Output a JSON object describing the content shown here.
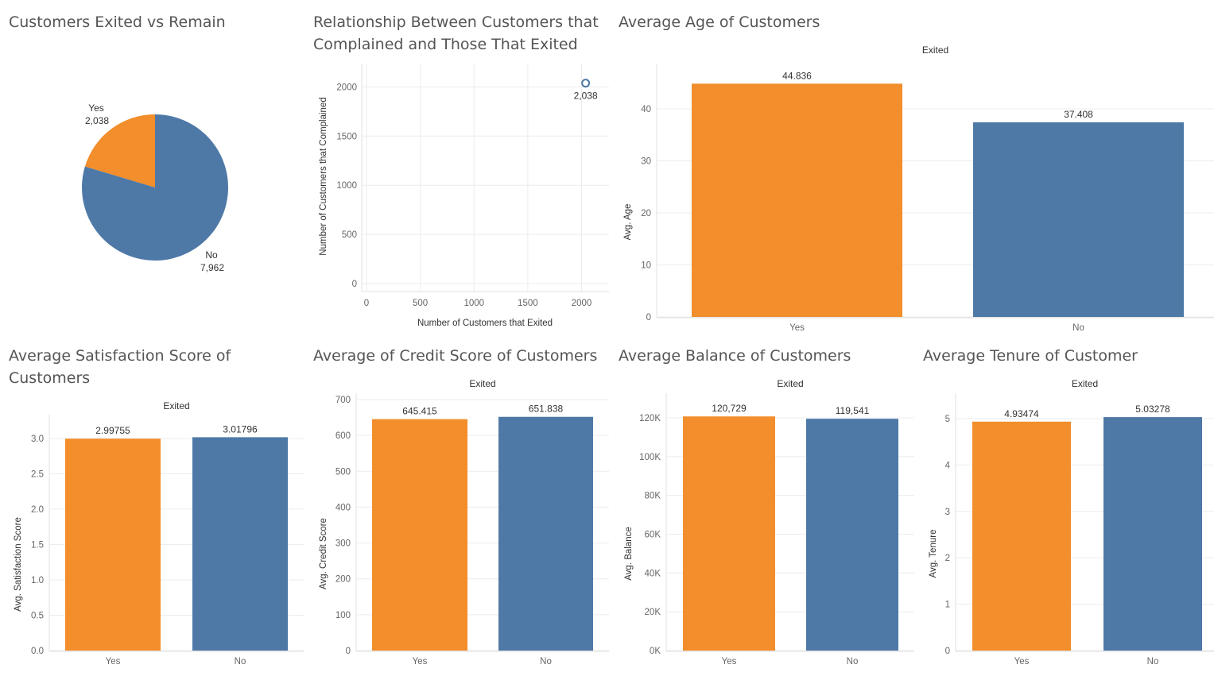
{
  "colors": {
    "yes": "#f28e2b",
    "no": "#4e79a7"
  },
  "chart_data": [
    {
      "id": "exited_vs_remain",
      "type": "pie",
      "title": "Customers Exited vs Remain",
      "slices": [
        {
          "label": "Yes",
          "value": 2038,
          "display": "2,038",
          "color": "#f28e2b"
        },
        {
          "label": "No",
          "value": 7962,
          "display": "7,962",
          "color": "#4e79a7"
        }
      ]
    },
    {
      "id": "complain_vs_exited",
      "type": "scatter",
      "title": "Relationship Between Customers that Complained and Those That Exited",
      "xlabel": "Number of Customers that Exited",
      "ylabel": "Number of Customers that Complained",
      "xlim": [
        0,
        2100
      ],
      "ylim": [
        0,
        2100
      ],
      "xticks": [
        "0",
        "500",
        "1000",
        "1500",
        "2000"
      ],
      "yticks": [
        "0",
        "500",
        "1000",
        "1500",
        "2000"
      ],
      "points": [
        {
          "x": 2038,
          "y": 2038,
          "label": "2,038"
        }
      ]
    },
    {
      "id": "avg_age",
      "type": "bar",
      "title": "Average Age of Customers",
      "header": "Exited",
      "ylabel": "Avg. Age",
      "categories": [
        "Yes",
        "No"
      ],
      "values": [
        44.836,
        37.408
      ],
      "labels": [
        "44.836",
        "37.408"
      ],
      "ylim": [
        0,
        46.6
      ],
      "yticks": [
        "0",
        "10",
        "20",
        "30",
        "40"
      ]
    },
    {
      "id": "avg_satisfaction",
      "type": "bar",
      "title": "Average Satisfaction Score of Customers",
      "header": "Exited",
      "ylabel": "Avg. Satisfaction Score",
      "categories": [
        "Yes",
        "No"
      ],
      "values": [
        2.99755,
        3.01796
      ],
      "labels": [
        "2.99755",
        "3.01796"
      ],
      "ylim": [
        0,
        3.2
      ],
      "yticks": [
        "0.0",
        "0.5",
        "1.0",
        "1.5",
        "2.0",
        "2.5",
        "3.0"
      ]
    },
    {
      "id": "avg_credit",
      "type": "bar",
      "title": "Average of Credit Score of Customers",
      "header": "Exited",
      "ylabel": "Avg. Credit Score",
      "categories": [
        "Yes",
        "No"
      ],
      "values": [
        645.415,
        651.838
      ],
      "labels": [
        "645.415",
        "651.838"
      ],
      "ylim": [
        0,
        680
      ],
      "yticks": [
        "0",
        "100",
        "200",
        "300",
        "400",
        "500",
        "600",
        "700"
      ]
    },
    {
      "id": "avg_balance",
      "type": "bar",
      "title": "Average Balance of Customers",
      "header": "Exited",
      "ylabel": "Avg. Balance",
      "categories": [
        "Yes",
        "No"
      ],
      "values": [
        120729,
        119541
      ],
      "labels": [
        "120,729",
        "119,541"
      ],
      "ylim": [
        0,
        120000
      ],
      "yticks": [
        "0K",
        "20K",
        "40K",
        "60K",
        "80K",
        "100K",
        "120K"
      ]
    },
    {
      "id": "avg_tenure",
      "type": "bar",
      "title": "Average Tenure of Customer",
      "header": "Exited",
      "ylabel": "Avg. Tenure",
      "categories": [
        "Yes",
        "No"
      ],
      "values": [
        4.93474,
        5.03278
      ],
      "labels": [
        "4.93474",
        "5.03278"
      ],
      "ylim": [
        0,
        5
      ],
      "yticks": [
        "0",
        "1",
        "2",
        "3",
        "4",
        "5"
      ]
    }
  ]
}
